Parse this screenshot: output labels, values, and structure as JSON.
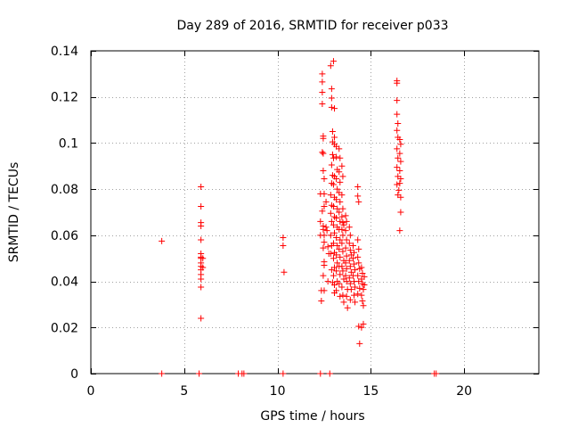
{
  "chart_data": {
    "type": "scatter",
    "title": "Day 289 of 2016, SRMTID for receiver p033",
    "xlabel": "GPS time / hours",
    "ylabel": "SRMTID / TECUs",
    "xlim": [
      0,
      24
    ],
    "ylim": [
      0,
      0.14
    ],
    "grid": true,
    "marker": "plus",
    "marker_color": "#ff0000",
    "x_ticks": [
      0,
      5,
      10,
      15,
      20
    ],
    "x_tick_labels": [
      "0",
      "5",
      "10",
      "15",
      "20"
    ],
    "y_ticks": [
      0,
      0.02,
      0.04,
      0.06,
      0.08,
      0.1,
      0.12,
      0.14
    ],
    "y_tick_labels": [
      "0",
      "0.02",
      "0.04",
      "0.06",
      "0.08",
      "0.1",
      "0.12",
      "0.14"
    ],
    "points": [
      [
        3.8,
        0.0575
      ],
      [
        3.8,
        0.0
      ],
      [
        5.8,
        0.0
      ],
      [
        5.9,
        0.081
      ],
      [
        5.9,
        0.0725
      ],
      [
        5.9,
        0.0655
      ],
      [
        5.9,
        0.064
      ],
      [
        5.9,
        0.058
      ],
      [
        5.9,
        0.052
      ],
      [
        5.9,
        0.0505
      ],
      [
        5.9,
        0.05
      ],
      [
        5.9,
        0.048
      ],
      [
        5.9,
        0.0465
      ],
      [
        5.9,
        0.045
      ],
      [
        5.9,
        0.043
      ],
      [
        5.9,
        0.041
      ],
      [
        5.9,
        0.0375
      ],
      [
        5.9,
        0.024
      ],
      [
        6.0,
        0.05
      ],
      [
        6.0,
        0.046
      ],
      [
        7.9,
        0.0
      ],
      [
        8.1,
        0.0
      ],
      [
        8.2,
        0.0
      ],
      [
        10.3,
        0.059
      ],
      [
        10.3,
        0.0555
      ],
      [
        10.35,
        0.044
      ],
      [
        10.3,
        0.0
      ],
      [
        12.3,
        0.0
      ],
      [
        12.8,
        0.0
      ],
      [
        12.3,
        0.078
      ],
      [
        12.3,
        0.066
      ],
      [
        12.3,
        0.06
      ],
      [
        12.35,
        0.036
      ],
      [
        12.35,
        0.0315
      ],
      [
        12.4,
        0.13
      ],
      [
        12.4,
        0.1265
      ],
      [
        12.4,
        0.122
      ],
      [
        12.4,
        0.117
      ],
      [
        12.45,
        0.103
      ],
      [
        12.45,
        0.102
      ],
      [
        12.4,
        0.096
      ],
      [
        12.45,
        0.0955
      ],
      [
        12.45,
        0.088
      ],
      [
        12.5,
        0.0845
      ],
      [
        12.5,
        0.078
      ],
      [
        12.5,
        0.0725
      ],
      [
        12.4,
        0.0705
      ],
      [
        12.45,
        0.064
      ],
      [
        12.45,
        0.0625
      ],
      [
        12.5,
        0.06
      ],
      [
        12.5,
        0.057
      ],
      [
        12.45,
        0.0545
      ],
      [
        12.5,
        0.0485
      ],
      [
        12.5,
        0.047
      ],
      [
        12.45,
        0.0425
      ],
      [
        12.5,
        0.036
      ],
      [
        12.6,
        0.0745
      ],
      [
        12.6,
        0.0635
      ],
      [
        12.65,
        0.062
      ],
      [
        12.7,
        0.055
      ],
      [
        12.75,
        0.052
      ],
      [
        12.7,
        0.04
      ],
      [
        12.85,
        0.1335
      ],
      [
        12.9,
        0.1235
      ],
      [
        12.9,
        0.1195
      ],
      [
        12.9,
        0.1155
      ],
      [
        12.95,
        0.105
      ],
      [
        12.95,
        0.1005
      ],
      [
        12.95,
        0.095
      ],
      [
        12.9,
        0.0905
      ],
      [
        12.95,
        0.086
      ],
      [
        12.9,
        0.0825
      ],
      [
        12.85,
        0.0775
      ],
      [
        12.9,
        0.073
      ],
      [
        12.85,
        0.0695
      ],
      [
        12.9,
        0.066
      ],
      [
        12.85,
        0.06
      ],
      [
        12.9,
        0.0555
      ],
      [
        12.85,
        0.052
      ],
      [
        12.9,
        0.045
      ],
      [
        12.95,
        0.0395
      ],
      [
        13.0,
        0.1355
      ],
      [
        13.05,
        0.115
      ],
      [
        13.05,
        0.1025
      ],
      [
        13.05,
        0.0995
      ],
      [
        13.0,
        0.0935
      ],
      [
        13.05,
        0.0855
      ],
      [
        13.0,
        0.082
      ],
      [
        13.05,
        0.0765
      ],
      [
        13.0,
        0.0725
      ],
      [
        13.05,
        0.068
      ],
      [
        13.0,
        0.0645
      ],
      [
        13.05,
        0.061
      ],
      [
        13.0,
        0.0565
      ],
      [
        13.05,
        0.0525
      ],
      [
        13.0,
        0.05
      ],
      [
        13.05,
        0.046
      ],
      [
        13.0,
        0.0425
      ],
      [
        13.05,
        0.0385
      ],
      [
        13.05,
        0.035
      ],
      [
        13.15,
        0.0985
      ],
      [
        13.15,
        0.094
      ],
      [
        13.2,
        0.0885
      ],
      [
        13.15,
        0.0845
      ],
      [
        13.2,
        0.08
      ],
      [
        13.15,
        0.0755
      ],
      [
        13.2,
        0.0715
      ],
      [
        13.15,
        0.0675
      ],
      [
        13.2,
        0.0635
      ],
      [
        13.15,
        0.059
      ],
      [
        13.2,
        0.0555
      ],
      [
        13.15,
        0.0515
      ],
      [
        13.2,
        0.048
      ],
      [
        13.15,
        0.0445
      ],
      [
        13.2,
        0.04
      ],
      [
        13.15,
        0.036
      ],
      [
        13.3,
        0.0975
      ],
      [
        13.35,
        0.0935
      ],
      [
        13.3,
        0.0875
      ],
      [
        13.35,
        0.083
      ],
      [
        13.3,
        0.0785
      ],
      [
        13.35,
        0.0745
      ],
      [
        13.3,
        0.07
      ],
      [
        13.35,
        0.066
      ],
      [
        13.3,
        0.0625
      ],
      [
        13.35,
        0.058
      ],
      [
        13.3,
        0.054
      ],
      [
        13.35,
        0.0505
      ],
      [
        13.3,
        0.0465
      ],
      [
        13.35,
        0.043
      ],
      [
        13.3,
        0.039
      ],
      [
        13.35,
        0.0335
      ],
      [
        13.45,
        0.09
      ],
      [
        13.5,
        0.0855
      ],
      [
        13.45,
        0.0775
      ],
      [
        13.5,
        0.0715
      ],
      [
        13.45,
        0.068
      ],
      [
        13.5,
        0.0655
      ],
      [
        13.55,
        0.0645
      ],
      [
        13.45,
        0.0625
      ],
      [
        13.5,
        0.06
      ],
      [
        13.45,
        0.0565
      ],
      [
        13.5,
        0.053
      ],
      [
        13.55,
        0.049
      ],
      [
        13.45,
        0.0465
      ],
      [
        13.5,
        0.0445
      ],
      [
        13.55,
        0.041
      ],
      [
        13.45,
        0.0375
      ],
      [
        13.5,
        0.034
      ],
      [
        13.55,
        0.031
      ],
      [
        13.65,
        0.0685
      ],
      [
        13.7,
        0.066
      ],
      [
        13.65,
        0.062
      ],
      [
        13.7,
        0.058
      ],
      [
        13.65,
        0.0545
      ],
      [
        13.7,
        0.051
      ],
      [
        13.65,
        0.048
      ],
      [
        13.7,
        0.0455
      ],
      [
        13.65,
        0.0425
      ],
      [
        13.7,
        0.04
      ],
      [
        13.75,
        0.0365
      ],
      [
        13.7,
        0.0335
      ],
      [
        13.75,
        0.0285
      ],
      [
        13.85,
        0.0635
      ],
      [
        13.9,
        0.06
      ],
      [
        13.85,
        0.0565
      ],
      [
        13.9,
        0.0535
      ],
      [
        13.95,
        0.0515
      ],
      [
        13.85,
        0.049
      ],
      [
        13.9,
        0.0465
      ],
      [
        13.95,
        0.044
      ],
      [
        13.85,
        0.0415
      ],
      [
        13.9,
        0.039
      ],
      [
        13.95,
        0.0365
      ],
      [
        13.9,
        0.032
      ],
      [
        14.05,
        0.0555
      ],
      [
        14.1,
        0.0525
      ],
      [
        14.05,
        0.05
      ],
      [
        14.1,
        0.0475
      ],
      [
        14.15,
        0.045
      ],
      [
        14.05,
        0.0425
      ],
      [
        14.1,
        0.04
      ],
      [
        14.15,
        0.0375
      ],
      [
        14.1,
        0.034
      ],
      [
        14.15,
        0.031
      ],
      [
        14.3,
        0.081
      ],
      [
        14.3,
        0.077
      ],
      [
        14.35,
        0.0745
      ],
      [
        14.3,
        0.058
      ],
      [
        14.35,
        0.054
      ],
      [
        14.3,
        0.0505
      ],
      [
        14.35,
        0.048
      ],
      [
        14.4,
        0.0455
      ],
      [
        14.3,
        0.0425
      ],
      [
        14.35,
        0.04
      ],
      [
        14.4,
        0.037
      ],
      [
        14.3,
        0.0345
      ],
      [
        14.35,
        0.0205
      ],
      [
        14.4,
        0.013
      ],
      [
        14.5,
        0.046
      ],
      [
        14.55,
        0.0435
      ],
      [
        14.5,
        0.041
      ],
      [
        14.55,
        0.039
      ],
      [
        14.6,
        0.0365
      ],
      [
        14.5,
        0.034
      ],
      [
        14.55,
        0.0315
      ],
      [
        14.6,
        0.0295
      ],
      [
        14.5,
        0.02
      ],
      [
        14.6,
        0.0215
      ],
      [
        14.65,
        0.042
      ],
      [
        14.65,
        0.0385
      ],
      [
        16.4,
        0.127
      ],
      [
        16.4,
        0.126
      ],
      [
        16.4,
        0.1185
      ],
      [
        16.4,
        0.1125
      ],
      [
        16.45,
        0.1085
      ],
      [
        16.4,
        0.1055
      ],
      [
        16.45,
        0.1025
      ],
      [
        16.4,
        0.0975
      ],
      [
        16.45,
        0.0935
      ],
      [
        16.4,
        0.0895
      ],
      [
        16.45,
        0.0855
      ],
      [
        16.4,
        0.082
      ],
      [
        16.5,
        0.0795
      ],
      [
        16.45,
        0.0775
      ],
      [
        16.55,
        0.1015
      ],
      [
        16.6,
        0.0995
      ],
      [
        16.55,
        0.0955
      ],
      [
        16.6,
        0.092
      ],
      [
        16.55,
        0.088
      ],
      [
        16.6,
        0.0845
      ],
      [
        16.55,
        0.0825
      ],
      [
        16.6,
        0.0765
      ],
      [
        16.6,
        0.07
      ],
      [
        16.55,
        0.062
      ],
      [
        18.4,
        0.0
      ],
      [
        18.5,
        0.0
      ]
    ]
  }
}
